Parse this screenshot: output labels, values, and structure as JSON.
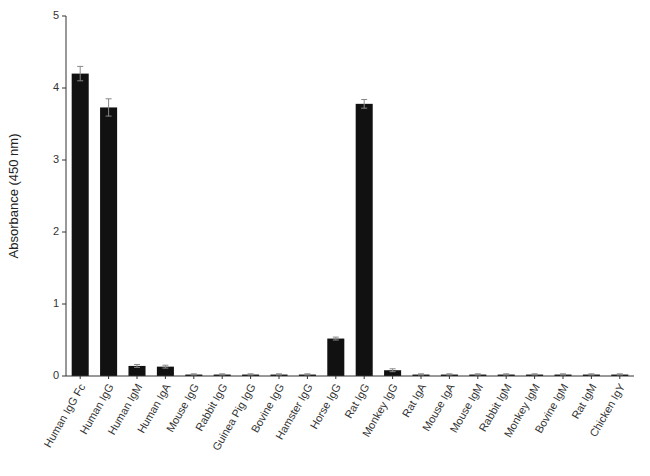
{
  "chart_data": {
    "type": "bar",
    "categories": [
      "Human IgG Fc",
      "Human IgG",
      "Human IgM",
      "Human IgA",
      "Mouse IgG",
      "Rabbit IgG",
      "Guinea Pig IgG",
      "Bovine IgG",
      "Hamster IgG",
      "Horse IgG",
      "Rat IgG",
      "Monkey IgG",
      "Rat IgA",
      "Mouse IgA",
      "Mouse IgM",
      "Rabbit IgM",
      "Monkey IgM",
      "Bovine IgM",
      "Rat IgM",
      "Chicken IgY"
    ],
    "values": [
      4.2,
      3.73,
      0.14,
      0.13,
      0.02,
      0.02,
      0.02,
      0.02,
      0.02,
      0.52,
      3.78,
      0.08,
      0.02,
      0.02,
      0.02,
      0.02,
      0.02,
      0.02,
      0.02,
      0.02
    ],
    "errors": [
      0.1,
      0.12,
      0.02,
      0.02,
      0.01,
      0.01,
      0.01,
      0.01,
      0.01,
      0.02,
      0.06,
      0.02,
      0.01,
      0.01,
      0.01,
      0.01,
      0.01,
      0.01,
      0.01,
      0.01
    ],
    "color": "#111111",
    "ylabel": "Absorbance (450 nm)",
    "ylim": [
      0,
      5
    ],
    "yticks": [
      0,
      1,
      2,
      3,
      4,
      5
    ],
    "grid": false
  }
}
